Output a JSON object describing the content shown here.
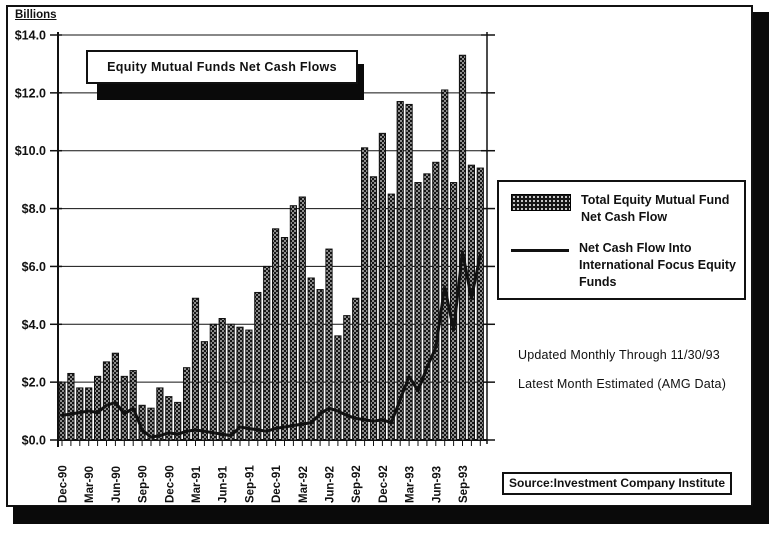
{
  "header": {
    "units_label": "Billions"
  },
  "title": "Equity Mutual Funds Net Cash Flows",
  "legend": {
    "bar_series_label": "Total Equity Mutual Fund Net Cash Flow",
    "line_series_label": "Net Cash Flow Into International Focus Equity Funds"
  },
  "notes": {
    "line1": "Updated Monthly Through 11/30/93",
    "line2": "Latest Month Estimated (AMG Data)"
  },
  "source": "Source:Investment Company Institute",
  "colors": {
    "ink": "#111111",
    "bar_fill": "#161616",
    "bar_speckle": "#f2f2f2",
    "background": "#ffffff"
  },
  "chart_data": {
    "type": "bar+line",
    "title": "Equity Mutual Funds Net Cash Flows",
    "ylabel": "Billions",
    "ylim": [
      0,
      14
    ],
    "y_tick_step": 2,
    "y_tick_labels": [
      "$0.0",
      "$2.0",
      "$4.0",
      "$6.0",
      "$8.0",
      "$10.0",
      "$12.0",
      "$14.0"
    ],
    "grid": true,
    "months_per_label": 3,
    "x_tick_labels": [
      "Dec-90",
      "Mar-90",
      "Jun-90",
      "Sep-90",
      "Dec-90",
      "Mar-91",
      "Jun-91",
      "Sep-91",
      "Dec-91",
      "Mar-92",
      "Jun-92",
      "Sep-92",
      "Dec-92",
      "Mar-93",
      "Jun-93",
      "Sep-93"
    ],
    "legend_position": "right",
    "series": [
      {
        "name": "Total Equity Mutual Fund Net Cash Flow",
        "type": "bar",
        "values": [
          2.0,
          2.3,
          1.8,
          1.8,
          2.2,
          2.7,
          3.0,
          2.2,
          2.4,
          1.2,
          1.1,
          1.8,
          1.5,
          1.3,
          2.5,
          4.9,
          3.4,
          4.0,
          4.2,
          4.0,
          3.9,
          3.8,
          5.1,
          6.0,
          7.3,
          7.0,
          8.1,
          8.4,
          5.6,
          5.2,
          6.6,
          3.6,
          4.3,
          4.9,
          10.1,
          9.1,
          10.6,
          8.5,
          11.7,
          11.6,
          8.9,
          9.2,
          9.6,
          12.1,
          8.9,
          13.3,
          9.5,
          9.4
        ]
      },
      {
        "name": "Net Cash Flow Into International Focus Equity Funds",
        "type": "line",
        "values": [
          0.85,
          0.9,
          0.95,
          1.0,
          0.95,
          1.2,
          1.3,
          0.9,
          1.1,
          0.35,
          0.1,
          0.15,
          0.25,
          0.2,
          0.3,
          0.35,
          0.3,
          0.25,
          0.2,
          0.15,
          0.45,
          0.4,
          0.35,
          0.3,
          0.4,
          0.45,
          0.5,
          0.55,
          0.6,
          0.9,
          1.1,
          1.0,
          0.85,
          0.75,
          0.7,
          0.65,
          0.7,
          0.6,
          1.4,
          2.2,
          1.7,
          2.5,
          3.2,
          5.3,
          3.8,
          6.5,
          4.9,
          6.4
        ]
      }
    ]
  }
}
